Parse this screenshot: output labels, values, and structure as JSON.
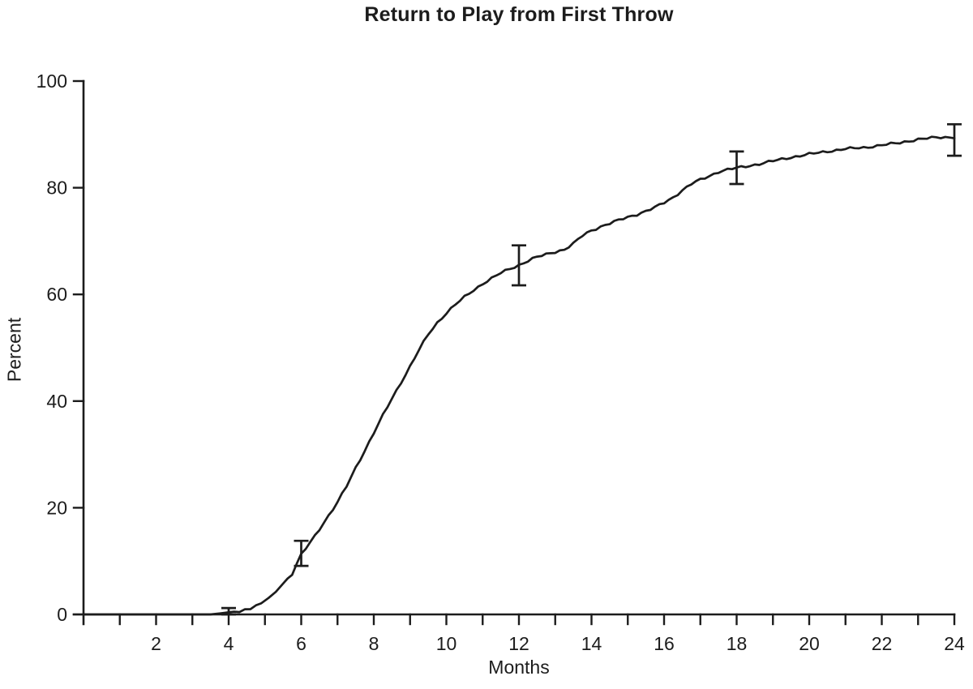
{
  "title": "Return to Play from First Throw",
  "chart_data": {
    "type": "line",
    "title": "Return to Play from First Throw",
    "xlabel": "Months",
    "ylabel": "Percent",
    "xlim": [
      0,
      24
    ],
    "ylim": [
      0,
      100
    ],
    "x_major_tick_labels": [
      2,
      4,
      6,
      8,
      10,
      12,
      14,
      16,
      18,
      20,
      22,
      24
    ],
    "x_minor_tick_every": 1,
    "y_tick_labels": [
      0,
      20,
      40,
      60,
      80,
      100
    ],
    "grid": false,
    "legend_position": "none",
    "line_color": "#1c1c1c",
    "background_color": "#ffffff",
    "series": [
      {
        "name": "cumulative-percent-returned-to-play",
        "points": [
          [
            0,
            0
          ],
          [
            0.5,
            0
          ],
          [
            1,
            0
          ],
          [
            1.5,
            0
          ],
          [
            2,
            0
          ],
          [
            2.5,
            0
          ],
          [
            3,
            0
          ],
          [
            3.5,
            0
          ],
          [
            3.9,
            0.3
          ],
          [
            4,
            0.4
          ],
          [
            4.3,
            0.6
          ],
          [
            4.6,
            1.2
          ],
          [
            4.9,
            2.0
          ],
          [
            5.1,
            3.0
          ],
          [
            5.3,
            4.3
          ],
          [
            5.5,
            5.8
          ],
          [
            5.75,
            7.6
          ],
          [
            6,
            11.2
          ],
          [
            6.25,
            13.5
          ],
          [
            6.5,
            16.0
          ],
          [
            6.75,
            18.5
          ],
          [
            7,
            21.0
          ],
          [
            7.25,
            24.0
          ],
          [
            7.5,
            27.5
          ],
          [
            7.75,
            30.7
          ],
          [
            8,
            34.0
          ],
          [
            8.25,
            37.3
          ],
          [
            8.5,
            40.5
          ],
          [
            8.75,
            43.5
          ],
          [
            9,
            46.5
          ],
          [
            9.25,
            49.6
          ],
          [
            9.5,
            52.5
          ],
          [
            9.75,
            54.7
          ],
          [
            10,
            56.5
          ],
          [
            10.25,
            58.1
          ],
          [
            10.5,
            59.5
          ],
          [
            10.75,
            60.8
          ],
          [
            11,
            62.0
          ],
          [
            11.25,
            63.0
          ],
          [
            11.5,
            64.0
          ],
          [
            11.75,
            64.8
          ],
          [
            12,
            65.5
          ],
          [
            12.25,
            66.3
          ],
          [
            12.5,
            67.0
          ],
          [
            12.75,
            67.5
          ],
          [
            13,
            68.0
          ],
          [
            13.25,
            68.4
          ],
          [
            13.5,
            69.5
          ],
          [
            13.75,
            71.0
          ],
          [
            14,
            72.0
          ],
          [
            14.25,
            72.7
          ],
          [
            14.5,
            73.3
          ],
          [
            14.75,
            73.9
          ],
          [
            15,
            74.5
          ],
          [
            15.25,
            75.0
          ],
          [
            15.5,
            75.6
          ],
          [
            15.75,
            76.3
          ],
          [
            16,
            77.2
          ],
          [
            16.25,
            78.2
          ],
          [
            16.5,
            79.5
          ],
          [
            16.75,
            80.7
          ],
          [
            17,
            81.5
          ],
          [
            17.25,
            82.2
          ],
          [
            17.5,
            83.0
          ],
          [
            17.75,
            83.4
          ],
          [
            18,
            83.7
          ],
          [
            18.25,
            84.0
          ],
          [
            18.5,
            84.3
          ],
          [
            19,
            85.0
          ],
          [
            19.5,
            85.7
          ],
          [
            20,
            86.3
          ],
          [
            20.5,
            86.8
          ],
          [
            21,
            87.3
          ],
          [
            21.5,
            87.5
          ],
          [
            22,
            88.0
          ],
          [
            22.5,
            88.4
          ],
          [
            23,
            89.1
          ],
          [
            23.5,
            89.4
          ],
          [
            24,
            89.5
          ]
        ]
      }
    ],
    "error_bars": [
      {
        "x": 4,
        "center": 0.4,
        "low": 0.0,
        "high": 1.2
      },
      {
        "x": 6,
        "center": 11.4,
        "low": 9.1,
        "high": 13.8
      },
      {
        "x": 12,
        "center": 65.5,
        "low": 61.7,
        "high": 69.2
      },
      {
        "x": 18,
        "center": 83.7,
        "low": 80.7,
        "high": 86.8
      },
      {
        "x": 24,
        "center": 89.3,
        "low": 86.0,
        "high": 91.9
      }
    ]
  }
}
